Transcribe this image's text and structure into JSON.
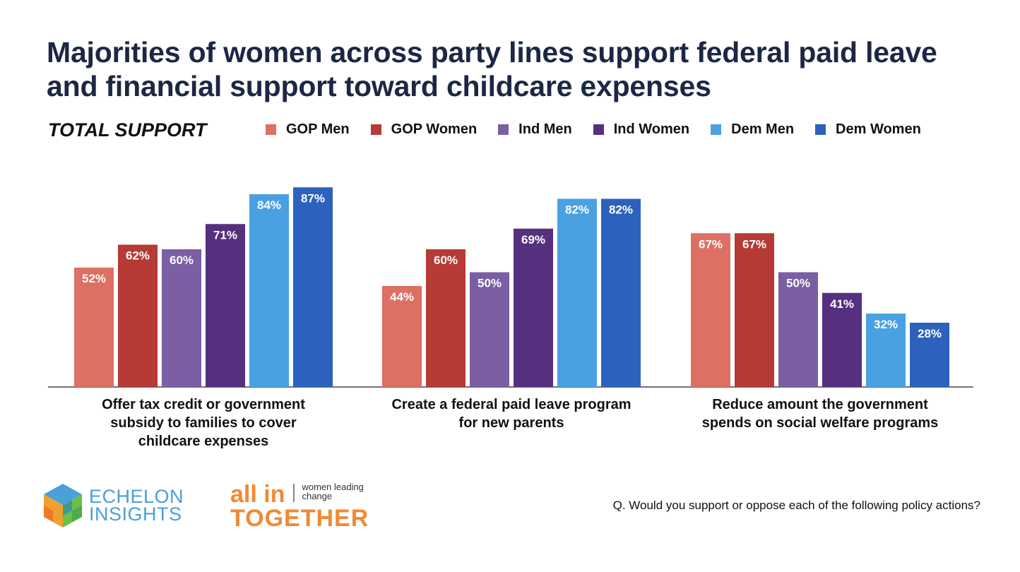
{
  "title": "Majorities of women across party lines support federal paid leave and financial support toward childcare expenses",
  "subtitle": "TOTAL SUPPORT",
  "chart_data": {
    "type": "bar",
    "title": "Majorities of women across party lines support federal paid leave and financial support toward childcare expenses",
    "subtitle": "TOTAL SUPPORT",
    "categories": [
      "Offer tax credit or government subsidy to families to cover childcare expenses",
      "Create a federal paid leave program for new parents",
      "Reduce amount the government spends on social welfare programs"
    ],
    "series": [
      {
        "name": "GOP Men",
        "color": "#de6f63",
        "values": [
          52,
          44,
          67
        ]
      },
      {
        "name": "GOP Women",
        "color": "#b63a36",
        "values": [
          62,
          60,
          67
        ]
      },
      {
        "name": "Ind Men",
        "color": "#7b5ea3",
        "values": [
          60,
          50,
          50
        ]
      },
      {
        "name": "Ind Women",
        "color": "#56307f",
        "values": [
          71,
          69,
          41
        ]
      },
      {
        "name": "Dem Men",
        "color": "#4aa1e2",
        "values": [
          84,
          82,
          32
        ]
      },
      {
        "name": "Dem Women",
        "color": "#2c62bd",
        "values": [
          87,
          82,
          28
        ]
      }
    ],
    "value_suffix": "%",
    "ylim": [
      0,
      100
    ],
    "xlabel": "",
    "ylabel": "",
    "legend_position": "top"
  },
  "logos": {
    "echelon_line1": "ECHELON",
    "echelon_line2": "INSIGHTS",
    "allin_word": "all in",
    "allin_tag_line1": "women leading",
    "allin_tag_line2": "change",
    "allin_bottom": "TOGETHER"
  },
  "footnote": "Q. Would you support or oppose each of the following policy actions?"
}
